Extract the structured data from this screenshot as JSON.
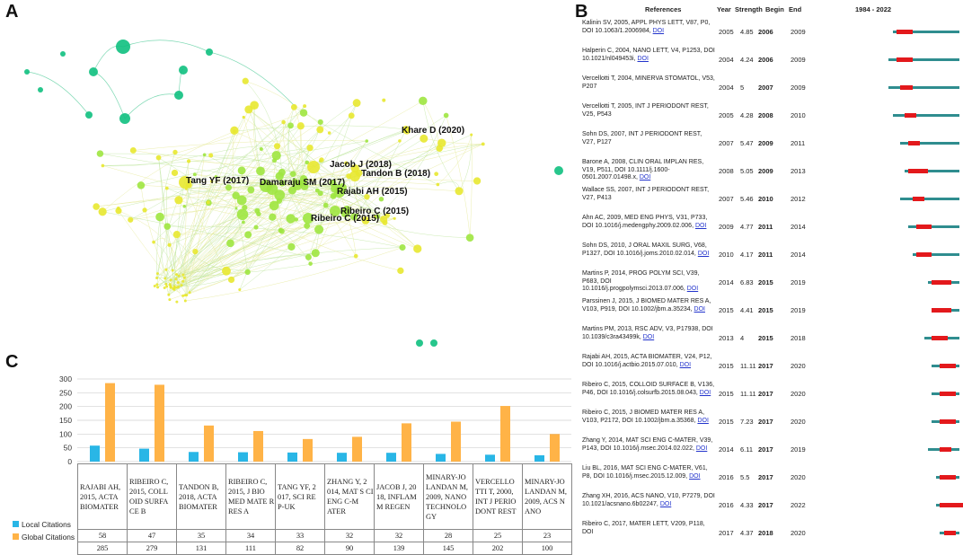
{
  "panels": {
    "a": "A",
    "b": "B",
    "c": "C"
  },
  "colors": {
    "green": "#10c080",
    "yellow": "#e8e830",
    "lime": "#9ee640",
    "local": "#29b6e6",
    "global": "#ffb347",
    "burst_line": "#2f8d8f",
    "burst_red": "#e3191c"
  },
  "network": {
    "labels": [
      "Khare D (2020)",
      "Jacob J (2018)",
      "Tandon B (2018)",
      "Tang YF (2017)",
      "Damaraju SM (2017)",
      "Rajabi AH (2015)",
      "Ribeiro C (2015)",
      "Ribeiro C (2015)"
    ]
  },
  "burst": {
    "headers": {
      "references": "References",
      "year": "Year",
      "strength": "Strength",
      "begin": "Begin",
      "end": "End",
      "range": "1984 - 2022"
    },
    "rows": [
      {
        "ref": "Kalinin SV, 2005, APPL PHYS LETT, V87, P0, DOI 10.1063/1.2006984,",
        "doi": "DOI",
        "year": "2005",
        "strength": "4.85",
        "begin": "2006",
        "end": "2009"
      },
      {
        "ref": "Halperin C, 2004, NANO LETT, V4, P1253, DOI 10.1021/nl049453i,",
        "doi": "DOI",
        "year": "2004",
        "strength": "4.24",
        "begin": "2006",
        "end": "2009"
      },
      {
        "ref": "Vercellotti T, 2004, MINERVA STOMATOL, V53, P207",
        "doi": "",
        "year": "2004",
        "strength": "5",
        "begin": "2007",
        "end": "2009"
      },
      {
        "ref": "Vercellotti T, 2005, INT J PERIODONT REST, V25, P543",
        "doi": "",
        "year": "2005",
        "strength": "4.28",
        "begin": "2008",
        "end": "2010"
      },
      {
        "ref": "Sohn DS, 2007, INT J PERIODONT REST, V27, P127",
        "doi": "",
        "year": "2007",
        "strength": "5.47",
        "begin": "2009",
        "end": "2011"
      },
      {
        "ref": "Barone A, 2008, CLIN ORAL IMPLAN RES, V19, P511, DOI 10.1111/j.1600-0501.2007.01498.x,",
        "doi": "DOI",
        "year": "2008",
        "strength": "5.05",
        "begin": "2009",
        "end": "2013"
      },
      {
        "ref": "Wallace SS, 2007, INT J PERIODONT REST, V27, P413",
        "doi": "",
        "year": "2007",
        "strength": "5.46",
        "begin": "2010",
        "end": "2012"
      },
      {
        "ref": "Ahn AC, 2009, MED ENG PHYS, V31, P733, DOI 10.1016/j.medengphy.2009.02.006,",
        "doi": "DOI",
        "year": "2009",
        "strength": "4.77",
        "begin": "2011",
        "end": "2014"
      },
      {
        "ref": "Sohn DS, 2010, J ORAL MAXIL SURG, V68, P1327, DOI 10.1016/j.joms.2010.02.014,",
        "doi": "DOI",
        "year": "2010",
        "strength": "4.17",
        "begin": "2011",
        "end": "2014"
      },
      {
        "ref": "Martins P, 2014, PROG POLYM SCI, V39, P683, DOI 10.1016/j.progpolymsci.2013.07.006,",
        "doi": "DOI",
        "year": "2014",
        "strength": "6.83",
        "begin": "2015",
        "end": "2019"
      },
      {
        "ref": "Parssinen J, 2015, J BIOMED MATER RES A, V103, P919, DOI 10.1002/jbm.a.35234,",
        "doi": "DOI",
        "year": "2015",
        "strength": "4.41",
        "begin": "2015",
        "end": "2019"
      },
      {
        "ref": "Martins PM, 2013, RSC ADV, V3, P17938, DOI 10.1039/c3ra43499k,",
        "doi": "DOI",
        "year": "2013",
        "strength": "4",
        "begin": "2015",
        "end": "2018"
      },
      {
        "ref": "Rajabi AH, 2015, ACTA BIOMATER, V24, P12, DOI 10.1016/j.actbio.2015.07.010,",
        "doi": "DOI",
        "year": "2015",
        "strength": "11.11",
        "begin": "2017",
        "end": "2020"
      },
      {
        "ref": "Ribeiro C, 2015, COLLOID SURFACE B, V136, P46, DOI 10.1016/j.colsurfb.2015.08.043,",
        "doi": "DOI",
        "year": "2015",
        "strength": "11.11",
        "begin": "2017",
        "end": "2020"
      },
      {
        "ref": "Ribeiro C, 2015, J BIOMED MATER RES A, V103, P2172, DOI 10.1002/jbm.a.35368,",
        "doi": "DOI",
        "year": "2015",
        "strength": "7.23",
        "begin": "2017",
        "end": "2020"
      },
      {
        "ref": "Zhang Y, 2014, MAT SCI ENG C-MATER, V39, P143, DOI 10.1016/j.msec.2014.02.022,",
        "doi": "DOI",
        "year": "2014",
        "strength": "6.11",
        "begin": "2017",
        "end": "2019"
      },
      {
        "ref": "Liu BL, 2016, MAT SCI ENG C-MATER, V61, P8, DOI 10.1016/j.msec.2015.12.009,",
        "doi": "DOI",
        "year": "2016",
        "strength": "5.5",
        "begin": "2017",
        "end": "2020"
      },
      {
        "ref": "Zhang XH, 2016, ACS NANO, V10, P7279, DOI 10.1021/acsnano.6b02247,",
        "doi": "DOI",
        "year": "2016",
        "strength": "4.33",
        "begin": "2017",
        "end": "2022"
      },
      {
        "ref": "Ribeiro C, 2017, MATER LETT, V209, P118, DOI",
        "doi": "",
        "year": "2017",
        "strength": "4.37",
        "begin": "2018",
        "end": "2020"
      }
    ]
  },
  "chart_data": {
    "type": "bar",
    "title": "",
    "categories": [
      "RAJABI AH, 2015, ACTA BIOMATER",
      "RIBEIRO C, 2015, COLL OID SURFA CE B",
      "TANDON B, 2018, ACTA BIOMATER",
      "RIBEIRO C, 2015, J BIO MED MATE R RES A",
      "TANG YF, 2 017, SCI RE P-UK",
      "ZHANG Y, 2 014, MAT S CI ENG C-M ATER",
      "JACOB J, 20 18, INFLAM M REGEN",
      "MINARY-JO LANDAN M, 2009, NANO TECHNOLO GY",
      "VERCELLO TTI T, 2000, INT J PERIO DONT REST",
      "MINARY-JO LANDAN M, 2009, ACS N ANO"
    ],
    "series": [
      {
        "name": "Local Citations",
        "values": [
          58,
          47,
          35,
          34,
          33,
          32,
          32,
          28,
          25,
          23
        ]
      },
      {
        "name": "Global Citations",
        "values": [
          285,
          279,
          131,
          111,
          82,
          90,
          139,
          145,
          202,
          100
        ]
      }
    ],
    "ylim": [
      0,
      300
    ],
    "yticks": [
      "0",
      "50",
      "100",
      "150",
      "200",
      "250",
      "300"
    ],
    "xlabel": "",
    "ylabel": "",
    "grid": true,
    "legend": "table-left"
  }
}
